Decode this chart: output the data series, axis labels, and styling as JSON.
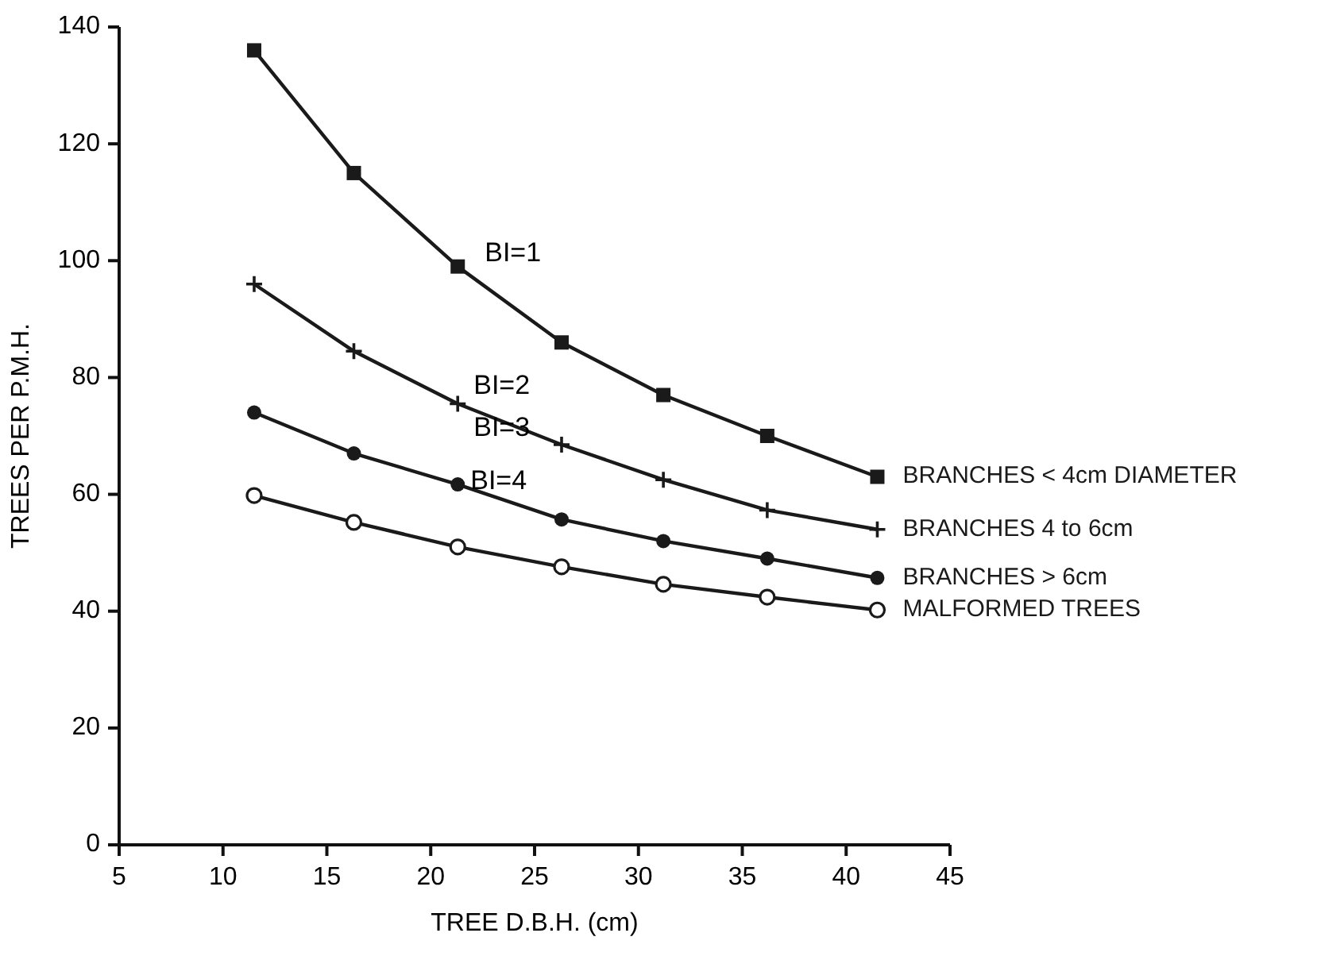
{
  "chart_data": {
    "type": "line",
    "xlabel": "TREE D.B.H. (cm)",
    "ylabel": "TREES PER P.M.H.",
    "xlim": [
      5,
      45
    ],
    "xticks": [
      5,
      10,
      15,
      20,
      25,
      30,
      35,
      40,
      45
    ],
    "ylim": [
      0,
      140
    ],
    "yticks": [
      0,
      20,
      40,
      60,
      80,
      100,
      120,
      140
    ],
    "grid": false,
    "legend": false,
    "line_style": "solid",
    "x": [
      11.5,
      16.3,
      21.3,
      26.3,
      31.2,
      36.2,
      41.5
    ],
    "series": [
      {
        "name": "BRANCHES < 4cm DIAMETER",
        "color": "#1a1a1a",
        "marker": "square",
        "values": [
          136,
          115,
          99,
          86,
          77,
          70,
          63
        ]
      },
      {
        "name": "BRANCHES 4 to 6cm",
        "color": "#1a1a1a",
        "marker": "cross",
        "values": [
          96,
          84.5,
          75.5,
          68.5,
          62.5,
          57.3,
          54
        ]
      },
      {
        "name": "BRANCHES > 6cm",
        "color": "#1a1a1a",
        "marker": "circle",
        "values": [
          74,
          67,
          61.7,
          55.7,
          52,
          49,
          45.7
        ]
      },
      {
        "name": "MALFORMED TREES",
        "color": "#1a1a1a",
        "marker": "open circle",
        "values": [
          59.8,
          55.2,
          51,
          47.6,
          44.6,
          42.4,
          40.2
        ]
      }
    ],
    "annotations": [
      "BI=1",
      "BI=2",
      "BI=3",
      "BI=4"
    ]
  }
}
